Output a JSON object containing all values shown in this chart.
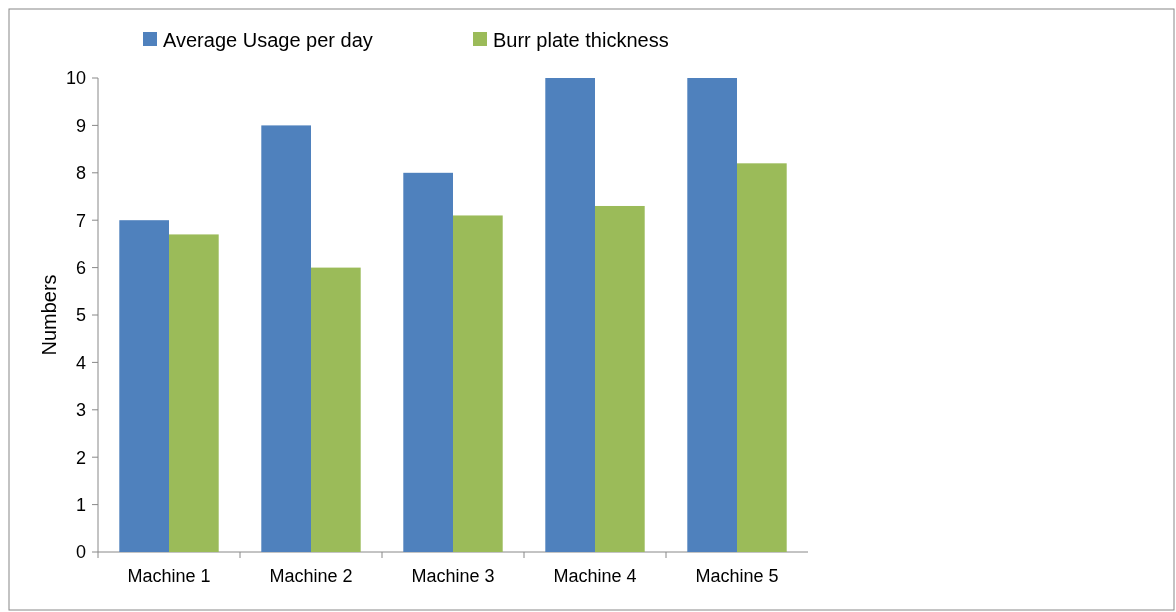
{
  "chart_data": {
    "type": "bar",
    "ylabel": "Numbers",
    "categories": [
      "Machine 1",
      "Machine 2",
      "Machine 3",
      "Machine 4",
      "Machine 5"
    ],
    "series": [
      {
        "name": "Average Usage per day",
        "color": "#4f81bd",
        "values": [
          7,
          9,
          8,
          10,
          10
        ]
      },
      {
        "name": "Burr plate thickness",
        "color": "#9bbb59",
        "values": [
          6.7,
          6.0,
          7.1,
          7.3,
          8.2
        ]
      }
    ],
    "ylim": [
      0,
      10
    ],
    "yticks": [
      0,
      1,
      2,
      3,
      4,
      5,
      6,
      7,
      8,
      9,
      10
    ],
    "grid": false,
    "legend": "top"
  }
}
